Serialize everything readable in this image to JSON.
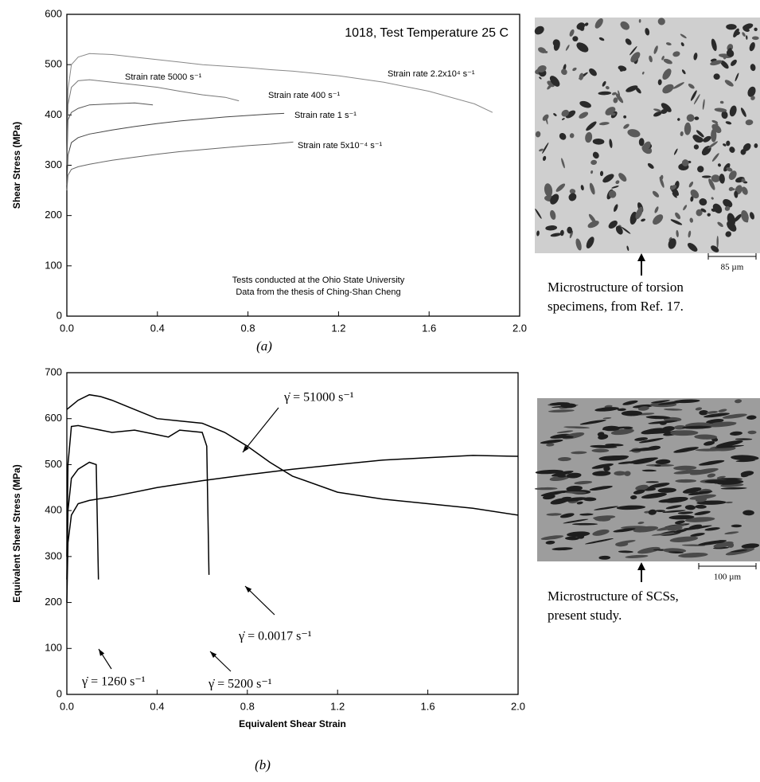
{
  "chart_data": [
    {
      "type": "line",
      "title": "1018, Test Temperature 25 C",
      "ylabel": "Shear Stress (MPa)",
      "notes": [
        "Tests conducted at the Ohio State University",
        "Data from the thesis of Ching-Shan Cheng"
      ],
      "xlim": [
        0,
        2
      ],
      "xticks": [
        {
          "value": 0,
          "label": "0.0"
        },
        0.4,
        0.8,
        1.2,
        1.6,
        {
          "value": 2,
          "label": "2.0"
        }
      ],
      "ylim": [
        0,
        600
      ],
      "yticks": [
        0,
        100,
        200,
        300,
        400,
        500,
        600
      ],
      "grid": false,
      "series": [
        {
          "name": "Strain rate 2.2x10⁴ s⁻¹",
          "color": "#888888",
          "x": [
            0,
            0.005,
            0.02,
            0.05,
            0.1,
            0.2,
            0.3,
            0.4,
            0.5,
            0.6,
            0.7,
            0.8,
            0.9,
            1.0,
            1.2,
            1.4,
            1.6,
            1.8,
            1.88
          ],
          "values": [
            300,
            450,
            500,
            515,
            522,
            520,
            515,
            510,
            505,
            500,
            497,
            494,
            490,
            487,
            478,
            465,
            447,
            422,
            405
          ]
        },
        {
          "name": "Strain rate 5000 s⁻¹",
          "color": "#777777",
          "x": [
            0,
            0.005,
            0.02,
            0.05,
            0.1,
            0.2,
            0.3,
            0.4,
            0.5,
            0.6,
            0.7,
            0.76
          ],
          "values": [
            300,
            420,
            455,
            468,
            470,
            465,
            460,
            455,
            447,
            440,
            435,
            428
          ]
        },
        {
          "name": "Strain rate 400 s⁻¹",
          "color": "#555555",
          "x": [
            0,
            0.005,
            0.02,
            0.05,
            0.1,
            0.2,
            0.3,
            0.38
          ],
          "values": [
            300,
            390,
            405,
            413,
            420,
            422,
            424,
            420
          ]
        },
        {
          "name": "Strain rate 1 s⁻¹",
          "color": "#444444",
          "x": [
            0,
            0.005,
            0.02,
            0.05,
            0.1,
            0.2,
            0.3,
            0.4,
            0.5,
            0.6,
            0.7,
            0.8,
            0.9,
            0.96
          ],
          "values": [
            260,
            320,
            345,
            355,
            362,
            370,
            377,
            383,
            388,
            392,
            396,
            399,
            402,
            403
          ]
        },
        {
          "name": "Strain rate 5x10⁻⁴ s⁻¹",
          "color": "#666666",
          "x": [
            0,
            0.005,
            0.02,
            0.05,
            0.1,
            0.2,
            0.3,
            0.4,
            0.5,
            0.6,
            0.7,
            0.8,
            0.9,
            1.0
          ],
          "values": [
            250,
            280,
            292,
            297,
            302,
            310,
            316,
            322,
            327,
            331,
            335,
            339,
            342,
            346
          ]
        }
      ]
    },
    {
      "type": "line",
      "xlabel": "Equivalent Shear Strain",
      "ylabel": "Equivalent Shear Stress (MPa)",
      "xlim": [
        0,
        2
      ],
      "xticks": [
        {
          "value": 0,
          "label": "0.0"
        },
        0.4,
        0.8,
        1.2,
        1.6,
        {
          "value": 2,
          "label": "2.0"
        }
      ],
      "ylim": [
        0,
        700
      ],
      "yticks": [
        0,
        100,
        200,
        300,
        400,
        500,
        600,
        700
      ],
      "grid": false,
      "series": [
        {
          "name": "γ̇ = 51000 s⁻¹",
          "color": "#000000",
          "x": [
            0,
            0.05,
            0.1,
            0.15,
            0.2,
            0.3,
            0.4,
            0.5,
            0.6,
            0.7,
            0.8,
            0.9,
            1.0,
            1.2,
            1.4,
            1.6,
            1.8,
            2.0
          ],
          "values": [
            620,
            640,
            652,
            648,
            640,
            620,
            600,
            595,
            590,
            570,
            540,
            505,
            475,
            440,
            425,
            415,
            405,
            390
          ]
        },
        {
          "name": "γ̇ = 5200 s⁻¹",
          "color": "#000000",
          "x": [
            0,
            0.005,
            0.02,
            0.05,
            0.1,
            0.2,
            0.3,
            0.4,
            0.45,
            0.5,
            0.6,
            0.62,
            0.63
          ],
          "values": [
            300,
            500,
            583,
            585,
            580,
            570,
            575,
            565,
            560,
            575,
            570,
            540,
            260
          ]
        },
        {
          "name": "γ̇ = 1260 s⁻¹",
          "color": "#000000",
          "x": [
            0,
            0.005,
            0.02,
            0.05,
            0.1,
            0.13,
            0.14
          ],
          "values": [
            250,
            400,
            470,
            490,
            505,
            500,
            250
          ]
        },
        {
          "name": "γ̇ = 0.0017 s⁻¹",
          "color": "#000000",
          "x": [
            0,
            0.005,
            0.02,
            0.05,
            0.1,
            0.2,
            0.4,
            0.6,
            0.8,
            1.0,
            1.2,
            1.4,
            1.6,
            1.8,
            2.0
          ],
          "values": [
            200,
            330,
            390,
            415,
            422,
            430,
            450,
            465,
            478,
            490,
            500,
            510,
            515,
            520,
            518
          ]
        }
      ]
    }
  ],
  "panels": [
    {
      "label": "(a)",
      "scale": "85 µm",
      "caption": [
        "Microstructure of torsion",
        "specimens, from Ref. 17."
      ]
    },
    {
      "label": "(b)",
      "scale": "100 µm",
      "caption": [
        "Microstructure of SCSs,",
        "present study."
      ]
    }
  ]
}
